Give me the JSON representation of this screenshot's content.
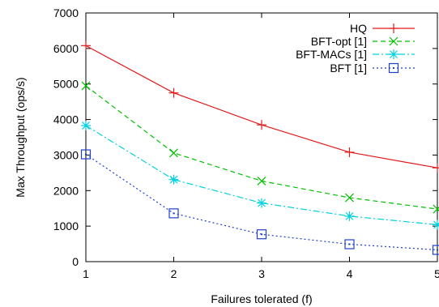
{
  "chart_data": {
    "type": "line",
    "title": "",
    "xlabel": "Failures tolerated (f)",
    "ylabel": "Max Throughput (ops/s)",
    "xlim": [
      1,
      5
    ],
    "ylim": [
      0,
      7000
    ],
    "xticks": [
      1,
      2,
      3,
      4,
      5
    ],
    "yticks": [
      0,
      1000,
      2000,
      3000,
      4000,
      5000,
      6000,
      7000
    ],
    "grid": false,
    "legend_position": "top-right",
    "x": [
      1,
      2,
      3,
      4,
      5
    ],
    "series": [
      {
        "name": "HQ",
        "values": [
          6080,
          4750,
          3850,
          3080,
          2640
        ],
        "color": "#e41a1c",
        "marker": "plus",
        "dash": "solid"
      },
      {
        "name": "BFT-opt [1]",
        "values": [
          4950,
          3060,
          2270,
          1800,
          1480
        ],
        "color": "#00c000",
        "marker": "cross",
        "dash": "dashed"
      },
      {
        "name": "BFT-MACs [1]",
        "values": [
          3830,
          2310,
          1650,
          1280,
          1040
        ],
        "color": "#00d0e0",
        "marker": "star",
        "dash": "dashdot"
      },
      {
        "name": "BFT [1]",
        "values": [
          3020,
          1360,
          770,
          490,
          330
        ],
        "color": "#1f3fcf",
        "marker": "square",
        "dash": "dotted"
      }
    ]
  }
}
